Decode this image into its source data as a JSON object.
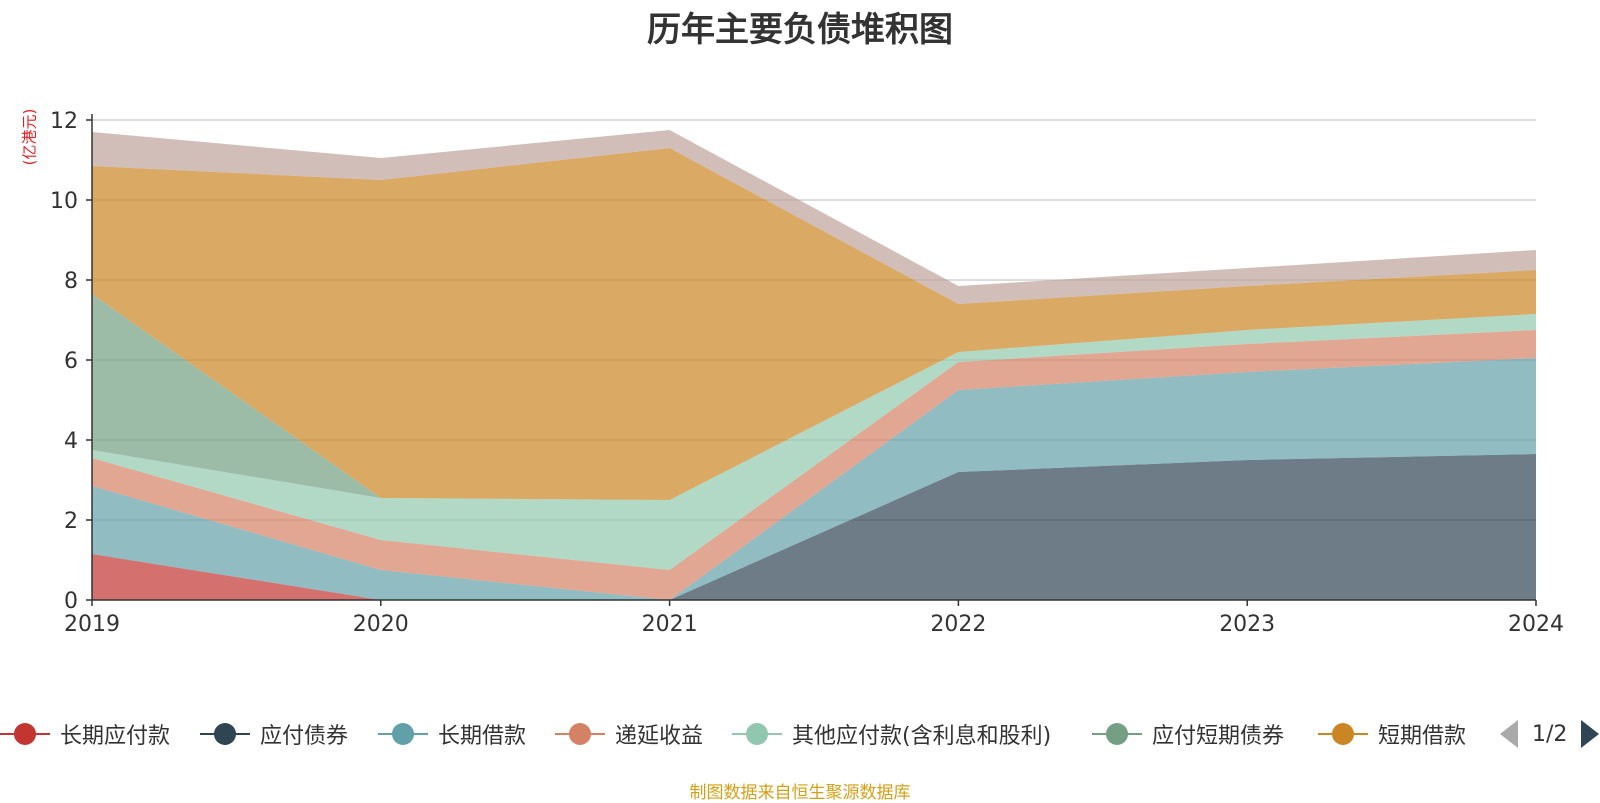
{
  "title": "历年主要负债堆积图",
  "unit_label": "(亿港元)",
  "source": "制图数据来自恒生聚源数据库",
  "pager": {
    "text": "1/2"
  },
  "chart_data": {
    "type": "area",
    "stacked": true,
    "title": "历年主要负债堆积图",
    "ylabel": "(亿港元)",
    "x": [
      "2019",
      "2020",
      "2021",
      "2022",
      "2023",
      "2024"
    ],
    "ylim": [
      0,
      12
    ],
    "yticks": [
      0,
      2,
      4,
      6,
      8,
      10,
      12
    ],
    "grid": true,
    "legend_position": "bottom",
    "series": [
      {
        "name": "长期应付款",
        "color": "#c23531",
        "values": [
          1.15,
          0,
          0,
          0,
          0,
          0
        ]
      },
      {
        "name": "应付债券",
        "color": "#2f4554",
        "values": [
          0,
          0,
          0,
          3.2,
          3.5,
          3.65
        ]
      },
      {
        "name": "长期借款",
        "color": "#61a0a8",
        "values": [
          1.7,
          0.75,
          0,
          2.05,
          2.2,
          2.4
        ]
      },
      {
        "name": "递延收益",
        "color": "#d48265",
        "values": [
          0.7,
          0.75,
          0.75,
          0.7,
          0.7,
          0.7
        ]
      },
      {
        "name": "其他应付款(含利息和股利)",
        "color": "#91c7ae",
        "values": [
          0.2,
          1.05,
          1.75,
          0.25,
          0.35,
          0.4
        ]
      },
      {
        "name": "应付短期债券",
        "color": "#749f83",
        "values": [
          3.9,
          0,
          0,
          0,
          0,
          0
        ]
      },
      {
        "name": "短期借款",
        "color": "#ca8622",
        "values": [
          3.2,
          7.95,
          8.8,
          1.2,
          1.1,
          1.1
        ]
      },
      {
        "name": "",
        "color": "#bda29a",
        "values": [
          0.85,
          0.55,
          0.45,
          0.45,
          0.45,
          0.5
        ]
      }
    ]
  }
}
